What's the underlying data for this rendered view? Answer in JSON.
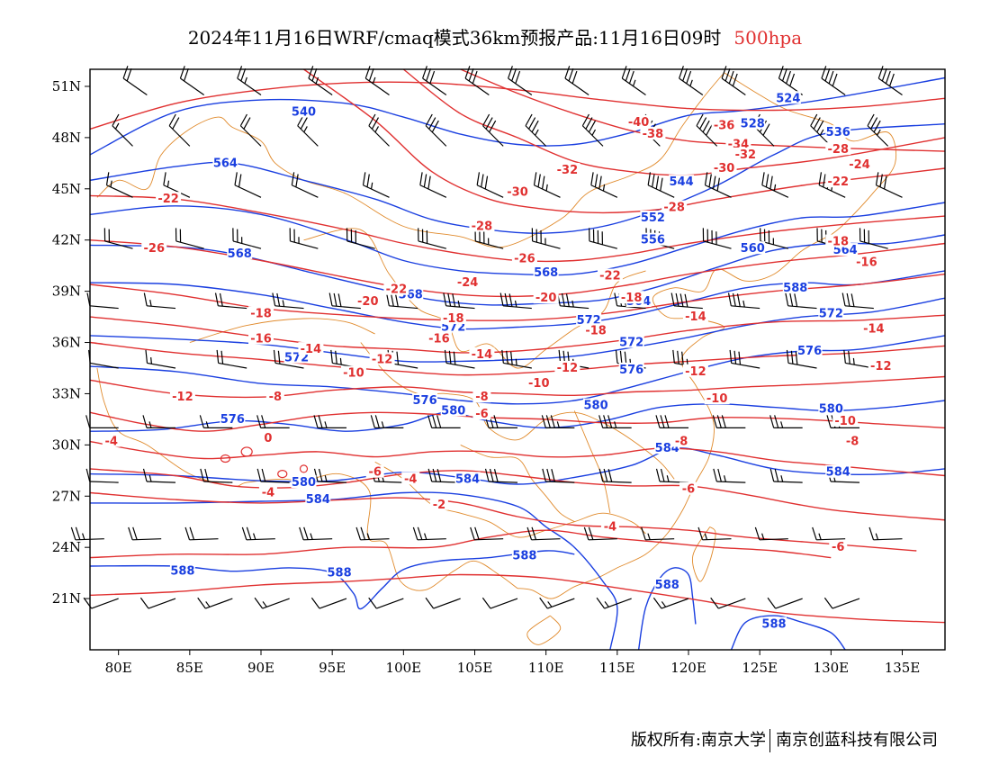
{
  "title": {
    "text": "2024年11月16日WRF/cmaq模式36km预报产品:11月16日09时",
    "level": "500hpa",
    "level_color": "#e03030"
  },
  "map": {
    "lon_range": [
      78,
      138
    ],
    "lat_range": [
      18,
      52
    ],
    "x_ticks": [
      {
        "lon": 80,
        "label": "80E"
      },
      {
        "lon": 85,
        "label": "85E"
      },
      {
        "lon": 90,
        "label": "90E"
      },
      {
        "lon": 95,
        "label": "95E"
      },
      {
        "lon": 100,
        "label": "100E"
      },
      {
        "lon": 105,
        "label": "105E"
      },
      {
        "lon": 110,
        "label": "110E"
      },
      {
        "lon": 115,
        "label": "115E"
      },
      {
        "lon": 120,
        "label": "120E"
      },
      {
        "lon": 125,
        "label": "125E"
      },
      {
        "lon": 130,
        "label": "130E"
      },
      {
        "lon": 135,
        "label": "135E"
      }
    ],
    "y_ticks": [
      {
        "lat": 51,
        "label": "51N"
      },
      {
        "lat": 48,
        "label": "48N"
      },
      {
        "lat": 45,
        "label": "45N"
      },
      {
        "lat": 42,
        "label": "42N"
      },
      {
        "lat": 39,
        "label": "39N"
      },
      {
        "lat": 36,
        "label": "36N"
      },
      {
        "lat": 33,
        "label": "33N"
      },
      {
        "lat": 30,
        "label": "30N"
      },
      {
        "lat": 27,
        "label": "27N"
      },
      {
        "lat": 24,
        "label": "24N"
      },
      {
        "lat": 21,
        "label": "21N"
      }
    ],
    "colors": {
      "height": "#1a3fe0",
      "temperature": "#e03030",
      "boundary": "#e08a2c",
      "wind": "#000000"
    },
    "height_labels": [
      {
        "text": "540",
        "lon": 93,
        "lat": 49.5
      },
      {
        "text": "524",
        "lon": 127,
        "lat": 50.3
      },
      {
        "text": "528",
        "lon": 124.5,
        "lat": 48.8
      },
      {
        "text": "536",
        "lon": 130.5,
        "lat": 48.3
      },
      {
        "text": "564",
        "lon": 87.5,
        "lat": 46.5
      },
      {
        "text": "544",
        "lon": 119.5,
        "lat": 45.4
      },
      {
        "text": "552",
        "lon": 117.5,
        "lat": 43.3
      },
      {
        "text": "556",
        "lon": 117.5,
        "lat": 42.0
      },
      {
        "text": "560",
        "lon": 124.5,
        "lat": 41.5
      },
      {
        "text": "564",
        "lon": 131,
        "lat": 41.4
      },
      {
        "text": "568",
        "lon": 88.5,
        "lat": 41.2
      },
      {
        "text": "568",
        "lon": 100.5,
        "lat": 38.8
      },
      {
        "text": "568",
        "lon": 110,
        "lat": 40.1
      },
      {
        "text": "564",
        "lon": 116.5,
        "lat": 38.4
      },
      {
        "text": "588",
        "lon": 127.5,
        "lat": 39.2
      },
      {
        "text": "572",
        "lon": 103.5,
        "lat": 36.9
      },
      {
        "text": "572",
        "lon": 130,
        "lat": 37.7
      },
      {
        "text": "572",
        "lon": 116,
        "lat": 36.0
      },
      {
        "text": "572",
        "lon": 113,
        "lat": 37.3
      },
      {
        "text": "576",
        "lon": 128.5,
        "lat": 35.5
      },
      {
        "text": "572",
        "lon": 92.5,
        "lat": 35.1
      },
      {
        "text": "576",
        "lon": 116,
        "lat": 34.4
      },
      {
        "text": "576",
        "lon": 101.5,
        "lat": 32.6
      },
      {
        "text": "580",
        "lon": 103.5,
        "lat": 32.0
      },
      {
        "text": "580",
        "lon": 113.5,
        "lat": 32.3
      },
      {
        "text": "580",
        "lon": 130,
        "lat": 32.1
      },
      {
        "text": "576",
        "lon": 88,
        "lat": 31.5
      },
      {
        "text": "584",
        "lon": 118.5,
        "lat": 29.8
      },
      {
        "text": "584",
        "lon": 130.5,
        "lat": 28.4
      },
      {
        "text": "580",
        "lon": 93,
        "lat": 27.8
      },
      {
        "text": "584",
        "lon": 104.5,
        "lat": 28.0
      },
      {
        "text": "584",
        "lon": 94,
        "lat": 26.8
      },
      {
        "text": "588",
        "lon": 84.5,
        "lat": 22.6
      },
      {
        "text": "588",
        "lon": 95.5,
        "lat": 22.5
      },
      {
        "text": "588",
        "lon": 108.5,
        "lat": 23.5
      },
      {
        "text": "588",
        "lon": 118.5,
        "lat": 21.8
      },
      {
        "text": "588",
        "lon": 126,
        "lat": 19.5
      }
    ],
    "temp_labels": [
      {
        "text": "-40",
        "lon": 116.5,
        "lat": 48.9
      },
      {
        "text": "-38",
        "lon": 117.5,
        "lat": 48.2
      },
      {
        "text": "-36",
        "lon": 122.5,
        "lat": 48.7
      },
      {
        "text": "-34",
        "lon": 123.5,
        "lat": 47.6
      },
      {
        "text": "-32",
        "lon": 124,
        "lat": 47.0
      },
      {
        "text": "-30",
        "lon": 122.5,
        "lat": 46.2
      },
      {
        "text": "-28",
        "lon": 130.5,
        "lat": 47.3
      },
      {
        "text": "-24",
        "lon": 132,
        "lat": 46.4
      },
      {
        "text": "-22",
        "lon": 130.5,
        "lat": 45.4
      },
      {
        "text": "-32",
        "lon": 111.5,
        "lat": 46.1
      },
      {
        "text": "-30",
        "lon": 108,
        "lat": 44.8
      },
      {
        "text": "-28",
        "lon": 119,
        "lat": 43.9
      },
      {
        "text": "-28",
        "lon": 105.5,
        "lat": 42.8
      },
      {
        "text": "-22",
        "lon": 83.5,
        "lat": 44.4
      },
      {
        "text": "-26",
        "lon": 82.5,
        "lat": 41.5
      },
      {
        "text": "-26",
        "lon": 108.5,
        "lat": 40.9
      },
      {
        "text": "-24",
        "lon": 104.5,
        "lat": 39.5
      },
      {
        "text": "-22",
        "lon": 99.5,
        "lat": 39.1
      },
      {
        "text": "-22",
        "lon": 114.5,
        "lat": 39.9
      },
      {
        "text": "-20",
        "lon": 97.5,
        "lat": 38.4
      },
      {
        "text": "-20",
        "lon": 110,
        "lat": 38.6
      },
      {
        "text": "-18",
        "lon": 116,
        "lat": 38.6
      },
      {
        "text": "-18",
        "lon": 130.5,
        "lat": 41.9
      },
      {
        "text": "-16",
        "lon": 132.5,
        "lat": 40.7
      },
      {
        "text": "-18",
        "lon": 90,
        "lat": 37.7
      },
      {
        "text": "-18",
        "lon": 103.5,
        "lat": 37.4
      },
      {
        "text": "-16",
        "lon": 90,
        "lat": 36.2
      },
      {
        "text": "-16",
        "lon": 102.5,
        "lat": 36.2
      },
      {
        "text": "-18",
        "lon": 113.5,
        "lat": 36.7
      },
      {
        "text": "-14",
        "lon": 120.5,
        "lat": 37.5
      },
      {
        "text": "-14",
        "lon": 133,
        "lat": 36.8
      },
      {
        "text": "-14",
        "lon": 93.5,
        "lat": 35.6
      },
      {
        "text": "-14",
        "lon": 105.5,
        "lat": 35.3
      },
      {
        "text": "-12",
        "lon": 98.5,
        "lat": 35.0
      },
      {
        "text": "-12",
        "lon": 111.5,
        "lat": 34.5
      },
      {
        "text": "-12",
        "lon": 120.5,
        "lat": 34.3
      },
      {
        "text": "-12",
        "lon": 133.5,
        "lat": 34.6
      },
      {
        "text": "-10",
        "lon": 96.5,
        "lat": 34.2
      },
      {
        "text": "-10",
        "lon": 109.5,
        "lat": 33.6
      },
      {
        "text": "-10",
        "lon": 122,
        "lat": 32.7
      },
      {
        "text": "-12",
        "lon": 84.5,
        "lat": 32.8
      },
      {
        "text": "-8",
        "lon": 91,
        "lat": 32.8
      },
      {
        "text": "-8",
        "lon": 105.5,
        "lat": 32.8
      },
      {
        "text": "-6",
        "lon": 105.5,
        "lat": 31.8
      },
      {
        "text": "-10",
        "lon": 131,
        "lat": 31.4
      },
      {
        "text": "-8",
        "lon": 131.5,
        "lat": 30.2
      },
      {
        "text": "-8",
        "lon": 119.5,
        "lat": 30.2
      },
      {
        "text": "-4",
        "lon": 79.5,
        "lat": 30.2
      },
      {
        "text": "0",
        "lon": 90.5,
        "lat": 30.4
      },
      {
        "text": "-6",
        "lon": 98,
        "lat": 28.4
      },
      {
        "text": "-4",
        "lon": 100.5,
        "lat": 28.0
      },
      {
        "text": "-4",
        "lon": 90.5,
        "lat": 27.2
      },
      {
        "text": "-6",
        "lon": 120,
        "lat": 27.4
      },
      {
        "text": "-2",
        "lon": 102.5,
        "lat": 26.5
      },
      {
        "text": "-4",
        "lon": 114.5,
        "lat": 25.2
      },
      {
        "text": "-6",
        "lon": 130.5,
        "lat": 24.0
      }
    ],
    "wind_rows": [
      {
        "lat": 50.5,
        "lons": [
          82,
          86,
          90,
          95,
          99,
          103,
          106,
          109,
          113,
          117,
          121,
          124,
          128,
          131,
          135
        ],
        "dir": 305,
        "barbs": [
          2,
          2,
          2.5,
          2.5,
          2.5,
          3,
          3,
          3,
          3,
          3.5,
          3.5,
          4,
          4,
          4,
          4
        ]
      },
      {
        "lat": 47.5,
        "lons": [
          81,
          85,
          90,
          94,
          99,
          103,
          107,
          110,
          114,
          118,
          122,
          126,
          130,
          134
        ],
        "dir": 315,
        "barbs": [
          1.5,
          2,
          2,
          2.5,
          2.5,
          3,
          3,
          3.5,
          3.5,
          4,
          4,
          4,
          3.5,
          3.5
        ]
      },
      {
        "lat": 44.5,
        "lons": [
          81,
          85,
          90,
          94,
          99,
          103,
          107,
          111,
          115,
          119,
          123,
          127,
          131,
          135
        ],
        "dir": 295,
        "barbs": [
          1.5,
          1.5,
          2,
          2,
          2.5,
          3,
          3,
          3.5,
          3.5,
          4,
          4,
          3.5,
          3.5,
          3
        ]
      },
      {
        "lat": 41.5,
        "lons": [
          81,
          86,
          90,
          94,
          98,
          103,
          107,
          111,
          115,
          119,
          123,
          127,
          131,
          134
        ],
        "dir": 285,
        "barbs": [
          2,
          2,
          2.5,
          2.5,
          3,
          3,
          3.5,
          3.5,
          4,
          4,
          4,
          3.5,
          3,
          3
        ]
      },
      {
        "lat": 38.0,
        "lons": [
          80,
          84,
          89,
          93,
          97,
          101,
          105,
          109,
          113,
          117,
          121,
          125,
          129,
          133
        ],
        "dir": 275,
        "barbs": [
          1,
          1.5,
          2,
          2.5,
          3,
          3,
          3.5,
          3.5,
          3.5,
          4,
          4,
          3.5,
          3,
          3
        ]
      },
      {
        "lat": 34.5,
        "lons": [
          80,
          84,
          89,
          93,
          97,
          101,
          105,
          109,
          113,
          117,
          121,
          125,
          129,
          133
        ],
        "dir": 280,
        "barbs": [
          1,
          1.5,
          2,
          2,
          2.5,
          3,
          3,
          3.5,
          3.5,
          3.5,
          3.5,
          3,
          3,
          2.5
        ]
      },
      {
        "lat": 31.0,
        "lons": [
          80,
          84,
          88,
          92,
          96,
          100,
          104,
          108,
          112,
          116,
          120,
          124,
          128,
          132
        ],
        "dir": 270,
        "barbs": [
          1,
          1.5,
          1.5,
          2,
          2.5,
          2.5,
          3,
          3,
          3.5,
          3.5,
          3,
          3,
          2.5,
          2.5
        ]
      },
      {
        "lat": 27.8,
        "lons": [
          80,
          84,
          88,
          92,
          96,
          100,
          104,
          108,
          112,
          116,
          120,
          124,
          128,
          132
        ],
        "dir": 272,
        "barbs": [
          1,
          1.5,
          2,
          2,
          2.5,
          2.5,
          3,
          3,
          3,
          3,
          2.5,
          2.5,
          2.5,
          2
        ]
      },
      {
        "lat": 24.5,
        "lons": [
          79,
          83,
          87,
          91,
          95,
          99,
          103,
          107,
          111,
          115,
          119,
          123,
          127,
          131,
          135
        ],
        "dir": 268,
        "barbs": [
          2.5,
          2,
          2,
          2.5,
          2.5,
          2.5,
          2.5,
          2,
          2,
          2,
          1.5,
          1.5,
          1.5,
          1.5,
          1.5
        ]
      },
      {
        "lat": 21.0,
        "lons": [
          80,
          84,
          88,
          92,
          96,
          100,
          104,
          108,
          112,
          116,
          120,
          124,
          128,
          132
        ],
        "dir": 250,
        "barbs": [
          1,
          1,
          1.5,
          1.5,
          1,
          1,
          1,
          1,
          1.5,
          1.5,
          1.5,
          1,
          1,
          1
        ]
      }
    ]
  },
  "footer": {
    "left": "版权所有:南京大学",
    "right": "南京创蓝科技有限公司"
  }
}
